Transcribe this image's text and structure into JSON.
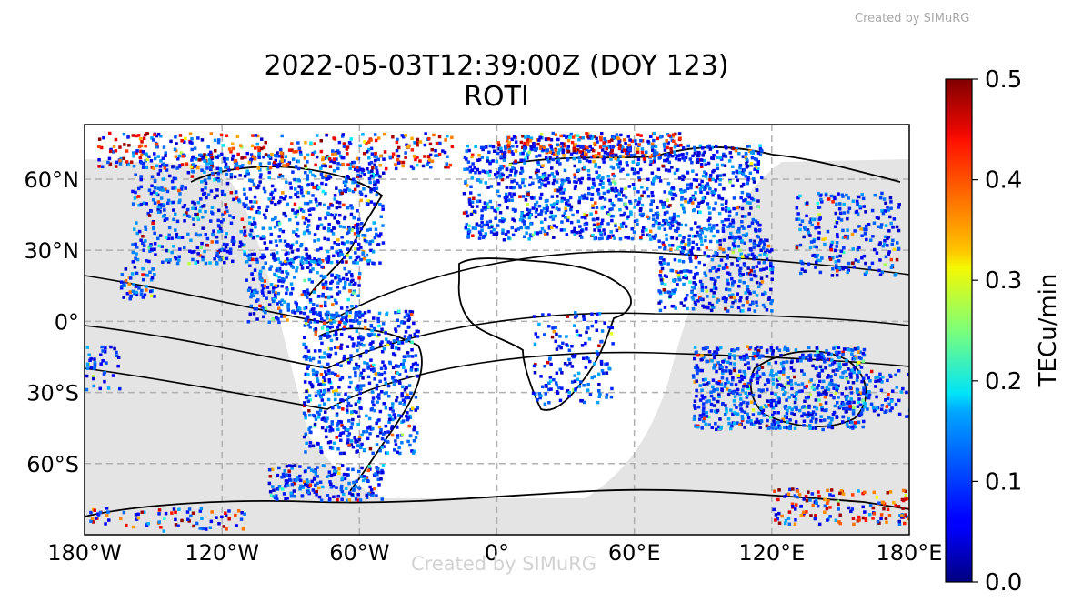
{
  "watermark": "Created by SIMuRG",
  "title": {
    "line1": "2022-05-03T12:39:00Z (DOY 123)",
    "line2": "ROTI"
  },
  "map": {
    "projection": "plate-carree",
    "lon_range": [
      -180,
      180
    ],
    "lat_range": [
      -90,
      90
    ],
    "gridlines": true,
    "gridline_style": "dashed",
    "land_outline_color": "#000000",
    "night_shading_color": "#e4e4e4",
    "x_ticks": [
      {
        "value": -180,
        "label": "180°W"
      },
      {
        "value": -120,
        "label": "120°W"
      },
      {
        "value": -60,
        "label": "60°W"
      },
      {
        "value": 0,
        "label": "0°"
      },
      {
        "value": 60,
        "label": "60°E"
      },
      {
        "value": 120,
        "label": "120°E"
      },
      {
        "value": 180,
        "label": "180°E"
      }
    ],
    "y_ticks": [
      {
        "value": 60,
        "label": "60°N"
      },
      {
        "value": 30,
        "label": "30°N"
      },
      {
        "value": 0,
        "label": "0°"
      },
      {
        "value": -30,
        "label": "30°S"
      },
      {
        "value": -60,
        "label": "60°S"
      }
    ]
  },
  "colorbar": {
    "label": "TECu/min",
    "colormap": "jet",
    "range": [
      0.0,
      0.5
    ],
    "ticks": [
      {
        "value": 0.0,
        "label": "0.0"
      },
      {
        "value": 0.1,
        "label": "0.1"
      },
      {
        "value": 0.2,
        "label": "0.2"
      },
      {
        "value": 0.3,
        "label": "0.3"
      },
      {
        "value": 0.4,
        "label": "0.4"
      },
      {
        "value": 0.5,
        "label": "0.5"
      }
    ]
  }
}
